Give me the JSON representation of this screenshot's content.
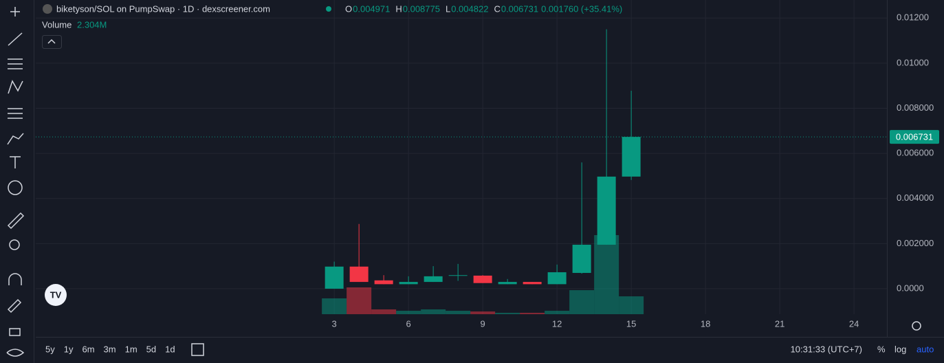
{
  "header": {
    "title": "biketyson/SOL on PumpSwap · 1D · dexscreener.com",
    "ohlc": [
      {
        "key": "O",
        "value": "0.004971"
      },
      {
        "key": "H",
        "value": "0.008775"
      },
      {
        "key": "L",
        "value": "0.004822"
      },
      {
        "key": "C",
        "value": "0.006731"
      }
    ],
    "change": "0.001760 (+35.41%)",
    "volume_label": "Volume",
    "volume_value": "2.304M"
  },
  "chart_data": {
    "type": "candlestick",
    "x": [
      3,
      4,
      5,
      6,
      7,
      8,
      9,
      10,
      11,
      12,
      13,
      14,
      15
    ],
    "open": [
      0.0,
      0.00098,
      0.00037,
      0.0002,
      0.0003,
      0.0006,
      0.00058,
      0.0002,
      0.0003,
      0.0002,
      0.0007,
      0.00195,
      0.004971
    ],
    "high": [
      0.0012,
      0.00287,
      0.0006,
      0.00055,
      0.001,
      0.0011,
      0.0006,
      0.00043,
      0.0003,
      0.00107,
      0.0056,
      0.0115,
      0.008775
    ],
    "low": [
      0.0,
      0.0003,
      0.0002,
      0.0002,
      0.0003,
      0.00035,
      0.00025,
      0.0002,
      0.0002,
      0.0002,
      0.00067,
      0.00195,
      0.004822
    ],
    "close": [
      0.00098,
      0.0003,
      0.0002,
      0.0003,
      0.00055,
      0.0006,
      0.00025,
      0.0003,
      0.0002,
      0.00073,
      0.00195,
      0.00497,
      0.006731
    ],
    "volume": [
      2040000,
      3460000,
      620000,
      440000,
      620000,
      440000,
      350000,
      180000,
      180000,
      440000,
      3100000,
      10200000,
      2304000
    ],
    "up_color": "#089981",
    "down_color": "#f23645",
    "xlim": [
      -9.06,
      25.33
    ],
    "ylim": [
      -0.00113,
      0.0128
    ],
    "xticks": [
      3,
      6,
      9,
      12,
      15,
      18,
      21,
      24
    ],
    "yticks": [
      {
        "value": 0,
        "label": "0.0000"
      },
      {
        "value": 0.002,
        "label": "0.002000"
      },
      {
        "value": 0.004,
        "label": "0.004000"
      },
      {
        "value": 0.006,
        "label": "0.006000"
      },
      {
        "value": 0.008,
        "label": "0.008000"
      },
      {
        "value": 0.01,
        "label": "0.01000"
      },
      {
        "value": 0.012,
        "label": "0.01200"
      }
    ],
    "grid": true,
    "last_price_label": "0.006731"
  },
  "footer": {
    "ranges": [
      "5y",
      "1y",
      "6m",
      "3m",
      "1m",
      "5d",
      "1d"
    ],
    "clock": "10:31:33 (UTC+7)",
    "scale_buttons": [
      "%",
      "log",
      "auto"
    ]
  }
}
